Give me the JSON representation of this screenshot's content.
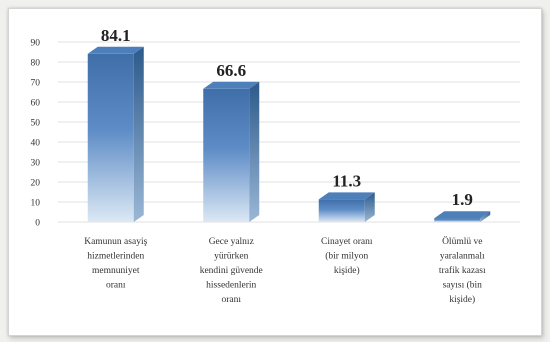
{
  "chart_data": {
    "type": "bar",
    "title": "",
    "xlabel": "",
    "ylabel": "",
    "ylim": [
      0,
      90
    ],
    "yticks": [
      0,
      10,
      20,
      30,
      40,
      50,
      60,
      70,
      80,
      90
    ],
    "grid": true,
    "legend": "none",
    "categories": [
      [
        "Kamunun asayiş",
        "hizmetlerinden",
        "memnuniyet",
        "oranı"
      ],
      [
        "Gece yalnız",
        "yürürken",
        "kendini güvende",
        "hissedenlerin",
        "oranı"
      ],
      [
        "Cinayet oranı",
        "(bir milyon",
        "kişide)"
      ],
      [
        "Ölümlü ve",
        "yaralanmalı",
        "trafik kazası",
        "sayısı (bin",
        "kişide)"
      ]
    ],
    "values": [
      84.1,
      66.6,
      11.3,
      1.9
    ],
    "value_labels": [
      "84.1",
      "66.6",
      "11.3",
      "1.9"
    ],
    "colors": {
      "bar_front_top": "#3f6ea8",
      "bar_front_bottom": "#dce8f5",
      "bar_side": "#2c5a8a",
      "bar_top": "#4d7fba",
      "grid": "#e2e2e2",
      "text": "#333333",
      "value_label": "#222222"
    }
  }
}
